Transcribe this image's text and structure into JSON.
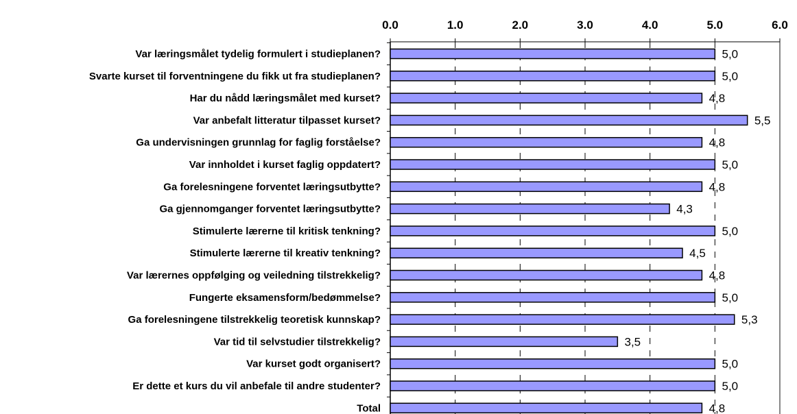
{
  "chart_data": {
    "type": "bar",
    "orientation": "horizontal",
    "title": "",
    "xlim": [
      0,
      6
    ],
    "x_ticks": [
      "0.0",
      "1.0",
      "2.0",
      "3.0",
      "4.0",
      "5.0",
      "6.0"
    ],
    "grid": true,
    "bar_color": "#9999ff",
    "bar_stroke": "#000000",
    "categories": [
      "Var læringsmålet tydelig formulert i studieplanen?",
      "Svarte kurset til forventningene du fikk ut fra studieplanen?",
      "Har du nådd læringsmålet med kurset?",
      "Var anbefalt litteratur tilpasset kurset?",
      "Ga undervisningen grunnlag for faglig forståelse?",
      "Var innholdet i kurset faglig oppdatert?",
      "Ga forelesningene forventet læringsutbytte?",
      "Ga gjennomganger forventet læringsutbytte?",
      "Stimulerte lærerne til kritisk tenkning?",
      "Stimulerte lærerne til kreativ tenkning?",
      "Var lærernes oppfølging og veiledning tilstrekkelig?",
      "Fungerte eksamensform/bedømmelse?",
      "Ga forelesningene tilstrekkelig teoretisk kunnskap?",
      "Var tid til selvstudier tilstrekkelig?",
      "Var kurset godt organisert?",
      "Er dette et kurs du vil anbefale til andre studenter?",
      "Total"
    ],
    "values": [
      5.0,
      5.0,
      4.8,
      5.5,
      4.8,
      5.0,
      4.8,
      4.3,
      5.0,
      4.5,
      4.8,
      5.0,
      5.3,
      3.5,
      5.0,
      5.0,
      4.8
    ],
    "value_labels": [
      "5,0",
      "5,0",
      "4,8",
      "5,5",
      "4,8",
      "5,0",
      "4,8",
      "4,3",
      "5,0",
      "4,5",
      "4,8",
      "5,0",
      "5,3",
      "3,5",
      "5,0",
      "5,0",
      "4,8"
    ]
  }
}
